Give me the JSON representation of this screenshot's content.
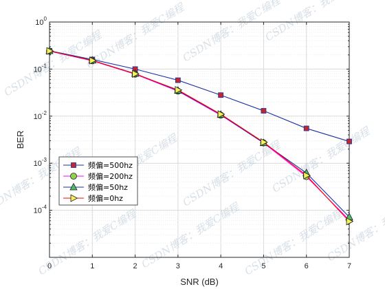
{
  "chart_data": {
    "type": "line",
    "title": "",
    "xlabel": "SNR (dB)",
    "ylabel": "BER",
    "x": [
      0,
      1,
      2,
      3,
      4,
      5,
      6,
      7
    ],
    "xlim": [
      0,
      7
    ],
    "ylim": [
      1e-05,
      1
    ],
    "yscale": "log",
    "x_tick_labels": [
      "0",
      "1",
      "2",
      "3",
      "4",
      "5",
      "6",
      "7"
    ],
    "y_ticks": [
      {
        "base": "10",
        "exp": "0"
      },
      {
        "base": "10",
        "exp": "-1"
      },
      {
        "base": "10",
        "exp": "-2"
      },
      {
        "base": "10",
        "exp": "-3"
      },
      {
        "base": "10",
        "exp": "-4"
      }
    ],
    "grid": true,
    "legend_position": "lower-left",
    "series": [
      {
        "name": "频偏=500hz",
        "marker": "square",
        "line_color": "#1a2fa3",
        "marker_fill": "#c0282d",
        "values": [
          0.245,
          0.16,
          0.1,
          0.058,
          0.028,
          0.013,
          0.0055,
          0.0029
        ]
      },
      {
        "name": "频偏=200hz",
        "marker": "circle",
        "line_color": "#ff00ff",
        "marker_fill": "#8fd14a",
        "values": [
          0.24,
          0.15,
          0.078,
          0.034,
          0.0105,
          0.0027,
          0.00052,
          6.2e-05
        ]
      },
      {
        "name": "频偏=50hz",
        "marker": "triangle-up",
        "line_color": "#1a2fa3",
        "marker_fill": "#4fb86a",
        "values": [
          0.243,
          0.153,
          0.08,
          0.035,
          0.0108,
          0.0027,
          0.00062,
          7.2e-05
        ]
      },
      {
        "name": "频偏=0hz",
        "marker": "triangle-right",
        "line_color": "#ff0000",
        "marker_fill": "#f3f05a",
        "values": [
          0.242,
          0.152,
          0.079,
          0.036,
          0.011,
          0.0028,
          0.00055,
          5.8e-05
        ]
      }
    ],
    "watermark": "CSDN博客：我爱C编程"
  }
}
